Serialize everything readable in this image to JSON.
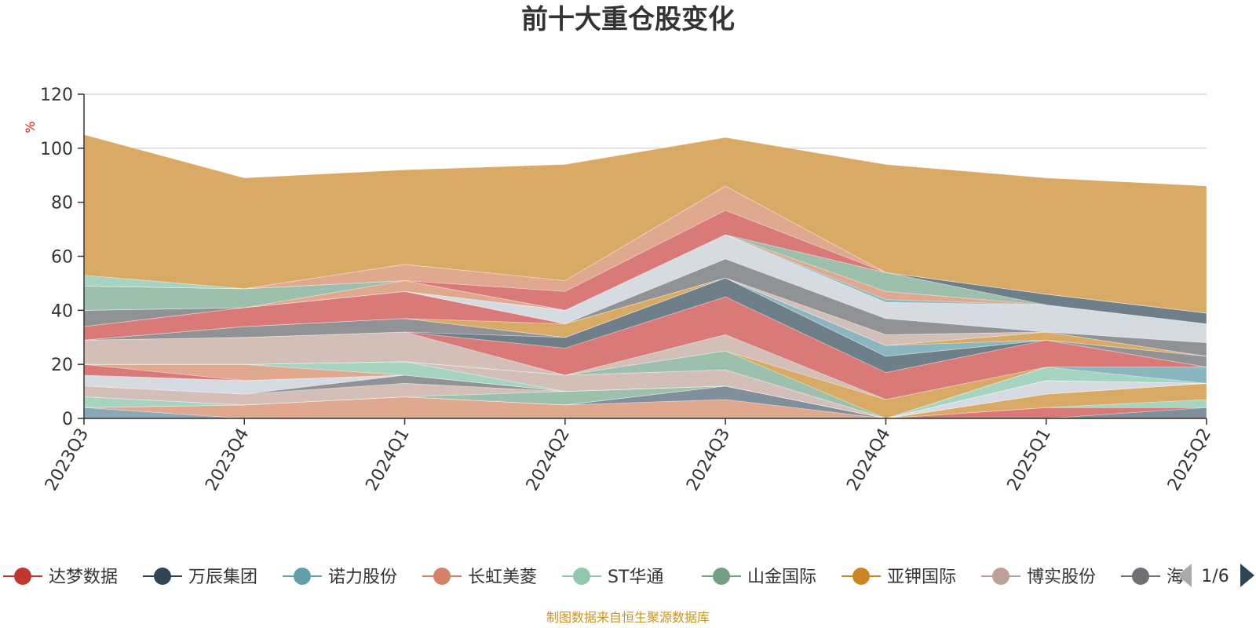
{
  "chart_data": {
    "type": "area",
    "title": "前十大重仓股变化",
    "ylabel": "%",
    "ylim": [
      0,
      120
    ],
    "yticks": [
      0,
      20,
      40,
      60,
      80,
      100,
      120
    ],
    "categories": [
      "2023Q3",
      "2023Q4",
      "2024Q1",
      "2024Q2",
      "2024Q3",
      "2024Q4",
      "2025Q1",
      "2025Q2"
    ],
    "series": [
      {
        "name": "诺力股份",
        "color": "#8aa8b8",
        "values": [
          4,
          0,
          0,
          0,
          0,
          0,
          0,
          0
        ]
      },
      {
        "name": "长虹美菱",
        "color": "#e0a88e",
        "values": [
          0,
          5,
          8,
          5,
          7,
          0,
          0,
          0
        ]
      },
      {
        "name": "万辰集团",
        "color": "#7f909c",
        "values": [
          0,
          0,
          0,
          0,
          5,
          0,
          0,
          4
        ]
      },
      {
        "name": "达梦数据",
        "color": "#d97a78",
        "values": [
          0,
          0,
          0,
          0,
          0,
          0,
          4,
          0
        ]
      },
      {
        "name": "ST华通",
        "color": "#a6d4c1",
        "values": [
          4,
          0,
          0,
          0,
          0,
          0,
          0,
          3
        ]
      },
      {
        "name": "亚钾国际",
        "color": "#d9aa66",
        "values": [
          0,
          0,
          0,
          0,
          0,
          0,
          5,
          6
        ]
      },
      {
        "name": "山金国际",
        "color": "#9cc0ad",
        "values": [
          0,
          0,
          0,
          5,
          0,
          0,
          0,
          0
        ]
      },
      {
        "name": "博实股份",
        "color": "#d3bfb8",
        "values": [
          4,
          4,
          5,
          0,
          0,
          0,
          0,
          0
        ]
      },
      {
        "name": "海",
        "color": "#909296",
        "values": [
          0,
          0,
          3,
          0,
          0,
          0,
          0,
          0
        ]
      },
      {
        "name": "",
        "color": "#d6dbe2",
        "values": [
          4,
          5,
          0,
          0,
          0,
          0,
          5,
          0
        ]
      },
      {
        "name": "",
        "color": "#d97a78",
        "values": [
          4,
          0,
          0,
          0,
          0,
          0,
          0,
          0
        ]
      },
      {
        "name": "",
        "color": "#e0a88e",
        "values": [
          0,
          6,
          0,
          0,
          0,
          0,
          0,
          0
        ]
      },
      {
        "name": "",
        "color": "#a6d4c1",
        "values": [
          0,
          0,
          5,
          0,
          0,
          0,
          0,
          0
        ]
      },
      {
        "name": "",
        "color": "#d3bfb8",
        "values": [
          0,
          0,
          0,
          6,
          6,
          0,
          0,
          0
        ]
      },
      {
        "name": "",
        "color": "#a6d4c1",
        "values": [
          0,
          0,
          0,
          0,
          0,
          0,
          5,
          0
        ]
      },
      {
        "name": "",
        "color": "#8ab6bf",
        "values": [
          0,
          0,
          0,
          0,
          0,
          0,
          0,
          6
        ]
      },
      {
        "name": "",
        "color": "#9cc0ad",
        "values": [
          0,
          0,
          0,
          0,
          7,
          0,
          0,
          0
        ]
      },
      {
        "name": "",
        "color": "#d9aa66",
        "values": [
          0,
          0,
          0,
          0,
          0,
          7,
          0,
          0
        ]
      },
      {
        "name": "",
        "color": "#d3bfb8",
        "values": [
          9,
          10,
          11,
          0,
          6,
          0,
          0,
          0
        ]
      },
      {
        "name": "",
        "color": "#d97a78",
        "values": [
          0,
          0,
          0,
          10,
          14,
          10,
          10,
          0
        ]
      },
      {
        "name": "",
        "color": "#6e7f8a",
        "values": [
          0,
          0,
          0,
          4,
          7,
          6,
          0,
          0
        ]
      },
      {
        "name": "",
        "color": "#909296",
        "values": [
          0,
          4,
          5,
          0,
          0,
          0,
          0,
          4
        ]
      },
      {
        "name": "",
        "color": "#8ab6bf",
        "values": [
          0,
          0,
          0,
          0,
          0,
          4,
          0,
          0
        ]
      },
      {
        "name": "",
        "color": "#d9aa66",
        "values": [
          0,
          0,
          0,
          5,
          0,
          0,
          3,
          0
        ]
      },
      {
        "name": "",
        "color": "#d97a78",
        "values": [
          5,
          7,
          10,
          0,
          0,
          0,
          0,
          0
        ]
      },
      {
        "name": "",
        "color": "#d3bfb8",
        "values": [
          0,
          0,
          0,
          0,
          0,
          4,
          0,
          0
        ]
      },
      {
        "name": "",
        "color": "#909296",
        "values": [
          6,
          0,
          0,
          0,
          7,
          6,
          0,
          5
        ]
      },
      {
        "name": "",
        "color": "#d6dbe2",
        "values": [
          0,
          0,
          0,
          5,
          9,
          6,
          10,
          7
        ]
      },
      {
        "name": "",
        "color": "#8ab6bf",
        "values": [
          0,
          0,
          0,
          0,
          0,
          1,
          0,
          0
        ]
      },
      {
        "name": "",
        "color": "#e0a88e",
        "values": [
          0,
          0,
          4,
          0,
          0,
          3,
          0,
          0
        ]
      },
      {
        "name": "",
        "color": "#9cc0ad",
        "values": [
          9,
          7,
          0,
          0,
          0,
          7,
          0,
          0
        ]
      },
      {
        "name": "",
        "color": "#6e7f8a",
        "values": [
          0,
          0,
          0,
          0,
          0,
          0,
          4,
          4
        ]
      },
      {
        "name": "",
        "color": "#d97a78",
        "values": [
          0,
          0,
          0,
          7,
          9,
          0,
          0,
          0
        ]
      },
      {
        "name": "",
        "color": "#e0a88e",
        "values": [
          0,
          0,
          6,
          4,
          9,
          0,
          0,
          0
        ]
      },
      {
        "name": "",
        "color": "#a6d4c1",
        "values": [
          4,
          0,
          0,
          0,
          0,
          0,
          0,
          0
        ]
      },
      {
        "name": "",
        "color": "#d9aa66",
        "values": [
          52,
          41,
          35,
          43,
          18,
          40,
          43,
          47
        ]
      }
    ]
  },
  "legend": {
    "items": [
      {
        "name": "达梦数据",
        "color": "#c23531"
      },
      {
        "name": "万辰集团",
        "color": "#2f4554"
      },
      {
        "name": "诺力股份",
        "color": "#61a0a8"
      },
      {
        "name": "长虹美菱",
        "color": "#d48265"
      },
      {
        "name": "ST华通",
        "color": "#91c7ae"
      },
      {
        "name": "山金国际",
        "color": "#749f83"
      },
      {
        "name": "亚钾国际",
        "color": "#ca8622"
      },
      {
        "name": "博实股份",
        "color": "#bda29a"
      },
      {
        "name": "海",
        "color": "#6e7074"
      }
    ],
    "page_label": "1/6"
  },
  "source_note": "制图数据来自恒生聚源数据库"
}
